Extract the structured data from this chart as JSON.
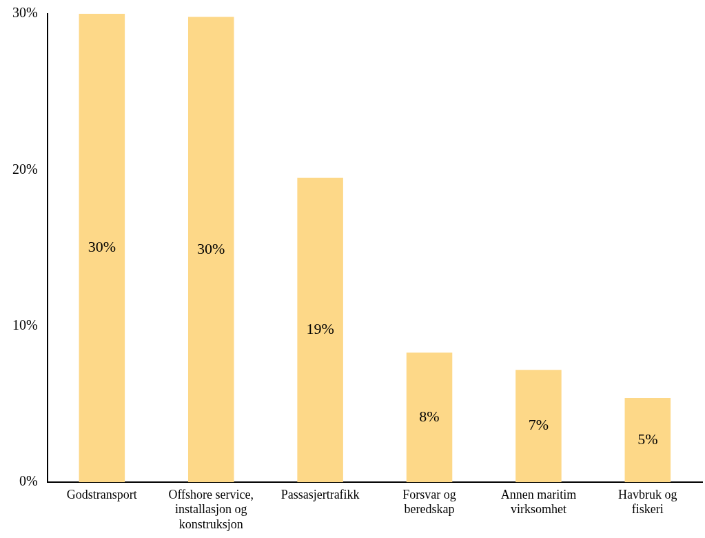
{
  "chart_data": {
    "type": "bar",
    "categories": [
      "Godstransport",
      "Offshore service, installasjon og konstruksjon",
      "Passasjertrafikk",
      "Forsvar og beredskap",
      "Annen maritim virksomhet",
      "Havbruk og fiskeri"
    ],
    "values": [
      30.0,
      29.8,
      19.5,
      8.3,
      7.2,
      5.4
    ],
    "value_labels": [
      "30%",
      "30%",
      "19%",
      "8%",
      "7%",
      "5%"
    ],
    "color": "#fdd888",
    "ylim": [
      0,
      30
    ],
    "yticks": [
      {
        "value": 0,
        "label": "0%"
      },
      {
        "value": 10,
        "label": "10%"
      },
      {
        "value": 20,
        "label": "20%"
      },
      {
        "value": 30,
        "label": "30%"
      }
    ],
    "grid": false,
    "legend": false
  }
}
